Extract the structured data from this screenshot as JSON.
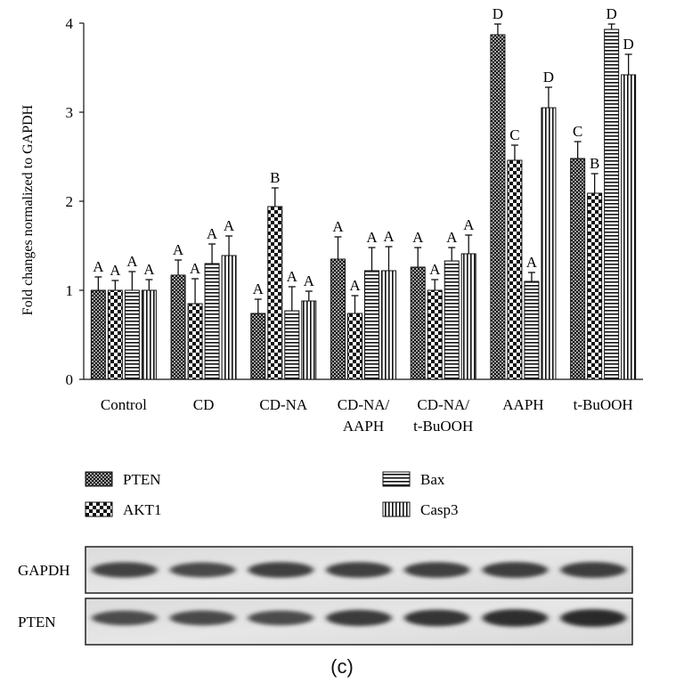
{
  "chart_data": {
    "type": "bar",
    "ylabel": "Fold changes normalized to GAPDH",
    "ylim": [
      0,
      4
    ],
    "yticks": [
      "0",
      "1",
      "2",
      "3",
      "4"
    ],
    "categories": [
      [
        "Control"
      ],
      [
        "CD"
      ],
      [
        "CD-NA"
      ],
      [
        "CD-NA/",
        "AAPH"
      ],
      [
        "CD-NA/",
        "t-BuOOH"
      ],
      [
        "AAPH"
      ],
      [
        "t-BuOOH"
      ]
    ],
    "series": [
      {
        "name": "PTEN",
        "pattern": "crosshatch",
        "values": [
          1.0,
          1.17,
          0.74,
          1.35,
          1.26,
          3.87,
          2.48
        ],
        "errors": [
          0.15,
          0.17,
          0.16,
          0.25,
          0.22,
          0.12,
          0.19
        ],
        "labels": [
          "A",
          "A",
          "A",
          "A",
          "A",
          "D",
          "C"
        ]
      },
      {
        "name": "AKT1",
        "pattern": "checker",
        "values": [
          1.0,
          0.85,
          1.94,
          0.74,
          1.0,
          2.46,
          2.09
        ],
        "errors": [
          0.11,
          0.28,
          0.21,
          0.2,
          0.12,
          0.17,
          0.22
        ],
        "labels": [
          "A",
          "A",
          "B",
          "A",
          "A",
          "C",
          "B"
        ]
      },
      {
        "name": "Bax",
        "pattern": "horizontal",
        "values": [
          1.0,
          1.3,
          0.77,
          1.22,
          1.33,
          1.1,
          3.93
        ],
        "errors": [
          0.21,
          0.22,
          0.27,
          0.26,
          0.15,
          0.1,
          0.06
        ],
        "labels": [
          "A",
          "A",
          "A",
          "A",
          "A",
          "A",
          "D"
        ]
      },
      {
        "name": "Casp3",
        "pattern": "vertical",
        "values": [
          1.0,
          1.39,
          0.88,
          1.22,
          1.41,
          3.05,
          3.42
        ],
        "errors": [
          0.12,
          0.22,
          0.11,
          0.27,
          0.21,
          0.23,
          0.23
        ],
        "labels": [
          "A",
          "A",
          "A",
          "A",
          "A",
          "D",
          "D"
        ]
      }
    ]
  },
  "blot": {
    "lanes": 7,
    "rows": [
      {
        "label": "GAPDH",
        "intensities": [
          0.78,
          0.72,
          0.8,
          0.8,
          0.8,
          0.82,
          0.82
        ]
      },
      {
        "label": "PTEN",
        "intensities": [
          0.7,
          0.72,
          0.7,
          0.85,
          0.88,
          0.95,
          0.98
        ]
      }
    ]
  },
  "panel_label": "(c)"
}
